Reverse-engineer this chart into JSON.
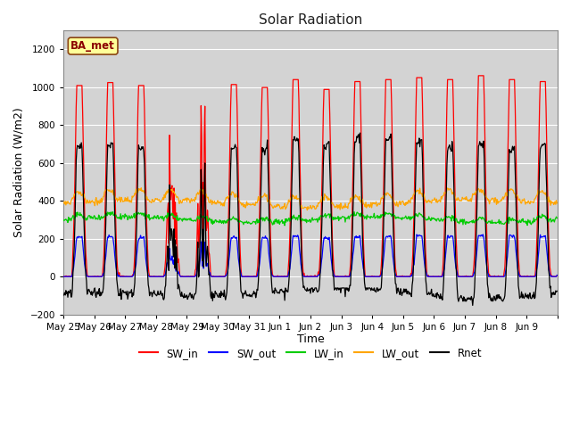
{
  "title": "Solar Radiation",
  "xlabel": "Time",
  "ylabel": "Solar Radiation (W/m2)",
  "annotation": "BA_met",
  "ylim": [
    -200,
    1300
  ],
  "yticks": [
    -200,
    0,
    200,
    400,
    600,
    800,
    1000,
    1200
  ],
  "num_days": 16,
  "hours_per_day": 48,
  "date_labels": [
    "May 25",
    "May 26",
    "May 27",
    "May 28",
    "May 29",
    "May 30",
    "May 31",
    "Jun 1",
    "Jun 2",
    "Jun 3",
    "Jun 4",
    "Jun 5",
    "Jun 6",
    "Jun 7",
    "Jun 8",
    "Jun 9"
  ],
  "series_colors": {
    "SW_in": "#FF0000",
    "SW_out": "#0000FF",
    "LW_in": "#00CC00",
    "LW_out": "#FFA500",
    "Rnet": "#000000"
  },
  "fig_bg_color": "#FFFFFF",
  "plot_bg_color": "#D3D3D3",
  "annotation_bg": "#FFFF99",
  "annotation_border": "#8B4513",
  "grid_color": "#FFFFFF",
  "figsize": [
    6.4,
    4.8
  ],
  "dpi": 100
}
